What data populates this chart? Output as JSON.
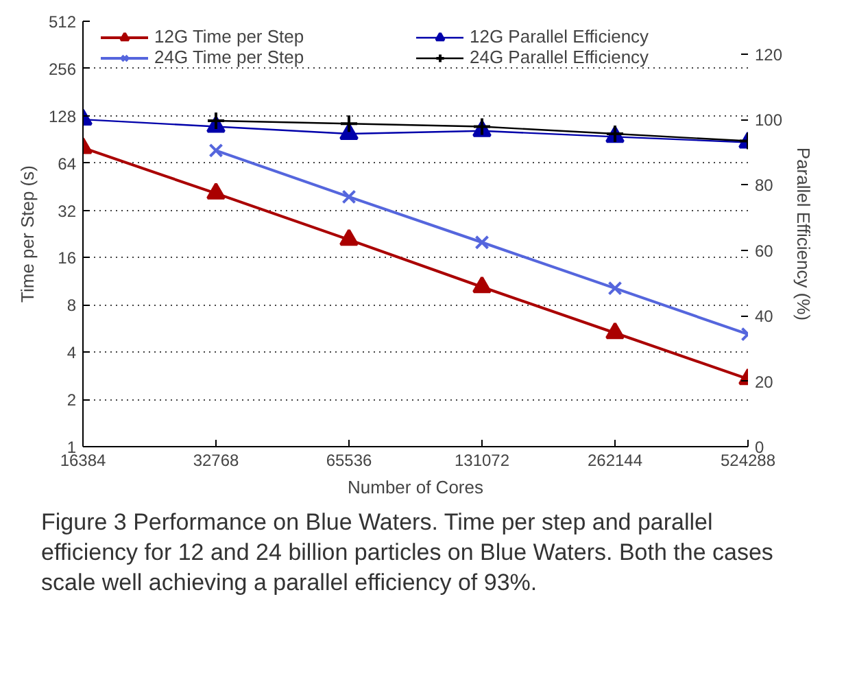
{
  "chart_data": {
    "type": "line",
    "xlabel": "Number of Cores",
    "ylabel": "Time per Step (s)",
    "y2label": "Parallel Efficiency (%)",
    "x": [
      16384,
      32768,
      65536,
      131072,
      262144,
      524288
    ],
    "log": "xy",
    "xlim": [
      16384,
      524288
    ],
    "xticks": [
      16384,
      32768,
      65536,
      131072,
      262144,
      524288
    ],
    "ylim": [
      1,
      512
    ],
    "yticks": [
      1,
      2,
      4,
      8,
      16,
      32,
      64,
      128,
      256,
      512
    ],
    "y2lim": [
      0,
      130
    ],
    "y2ticks": [
      0,
      20,
      40,
      60,
      80,
      100,
      120
    ],
    "grid": "y",
    "legend": "top",
    "series": [
      {
        "name": "12G Time per Step",
        "color": "#aa0000",
        "marker": "triangle",
        "values": [
          80,
          41,
          20.8,
          10.4,
          5.3,
          2.7
        ]
      },
      {
        "name": "24G Time per Step",
        "color": "#5566dd",
        "marker": "x",
        "values": [
          null,
          77,
          39,
          20,
          10.2,
          5.2
        ]
      },
      {
        "name": "12G Parallel Efficiency",
        "color": "#0000aa",
        "marker": "triangle",
        "axis": "y2",
        "values": [
          100,
          97.8,
          95.6,
          96.5,
          94.7,
          93
        ]
      },
      {
        "name": "24G Parallel Efficiency",
        "color": "#000000",
        "marker": "cross",
        "axis": "y2",
        "values": [
          null,
          99.6,
          98.7,
          97.8,
          95.6,
          93.4
        ]
      }
    ],
    "annotations": [
      "Figure 3  Performance on Blue Waters. Time per step and parallel efficiency for 12 and 24 billion particles on Blue Waters. Both the cases scale well achieving a parallel efficiency of 93%."
    ]
  }
}
